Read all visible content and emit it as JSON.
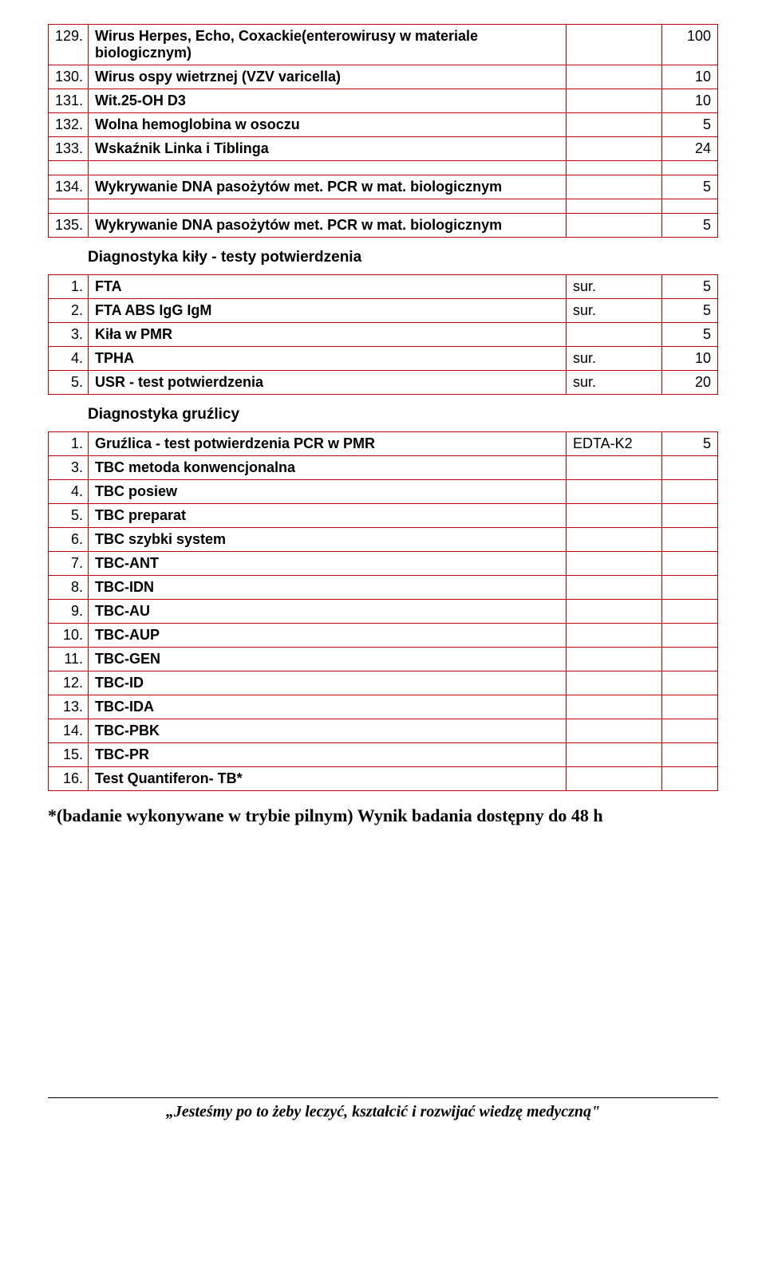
{
  "table1": {
    "rows": [
      {
        "num": "129.",
        "name": "Wirus Herpes, Echo, Coxackie(enterowirusy w materiale biologicznym)",
        "sample": "",
        "days": "100"
      },
      {
        "num": "130.",
        "name": "Wirus ospy wietrznej  (VZV varicella)",
        "sample": "",
        "days": "10"
      },
      {
        "num": "131.",
        "name": "Wit.25-OH D3",
        "sample": "",
        "days": "10"
      },
      {
        "num": "132.",
        "name": "Wolna hemoglobina w osoczu",
        "sample": "",
        "days": "5"
      },
      {
        "num": "133.",
        "name": "Wskaźnik Linka i Tiblinga",
        "sample": "",
        "days": "24"
      },
      {
        "num": "134.",
        "name": "Wykrywanie DNA pasożytów met. PCR w mat. biologicznym",
        "sample": "",
        "days": "5",
        "gap": true
      },
      {
        "num": "135.",
        "name": "Wykrywanie DNA pasożytów met. PCR w mat. biologicznym",
        "sample": "",
        "days": "5",
        "gap": true
      }
    ]
  },
  "section2": {
    "title": "Diagnostyka kiły - testy potwierdzenia",
    "rows": [
      {
        "num": "1.",
        "name": "FTA",
        "sample": "sur.",
        "days": "5"
      },
      {
        "num": "2.",
        "name": "FTA ABS IgG IgM",
        "sample": "sur.",
        "days": "5"
      },
      {
        "num": "3.",
        "name": "Kiła w PMR",
        "sample": "",
        "days": "5"
      },
      {
        "num": "4.",
        "name": "TPHA",
        "sample": "sur.",
        "days": "10"
      },
      {
        "num": "5.",
        "name": "USR - test potwierdzenia",
        "sample": "sur.",
        "days": "20"
      }
    ]
  },
  "section3": {
    "title": "Diagnostyka gruźlicy",
    "rows": [
      {
        "num": "1.",
        "name": "Gruźlica - test potwierdzenia PCR w PMR",
        "sample": "EDTA-K2",
        "days": "5"
      },
      {
        "num": "3.",
        "name": "TBC metoda konwencjonalna",
        "sample": "",
        "days": ""
      },
      {
        "num": "4.",
        "name": "TBC posiew",
        "sample": "",
        "days": ""
      },
      {
        "num": "5.",
        "name": "TBC preparat",
        "sample": "",
        "days": ""
      },
      {
        "num": "6.",
        "name": "TBC szybki system",
        "sample": "",
        "days": ""
      },
      {
        "num": "7.",
        "name": "TBC-ANT",
        "sample": "",
        "days": ""
      },
      {
        "num": "8.",
        "name": "TBC-IDN",
        "sample": "",
        "days": ""
      },
      {
        "num": "9.",
        "name": "TBC-AU",
        "sample": "",
        "days": ""
      },
      {
        "num": "10.",
        "name": "TBC-AUP",
        "sample": "",
        "days": ""
      },
      {
        "num": "11.",
        "name": "TBC-GEN",
        "sample": "",
        "days": ""
      },
      {
        "num": "12.",
        "name": "TBC-ID",
        "sample": "",
        "days": ""
      },
      {
        "num": "13.",
        "name": "TBC-IDA",
        "sample": "",
        "days": ""
      },
      {
        "num": "14.",
        "name": "TBC-PBK",
        "sample": "",
        "days": ""
      },
      {
        "num": "15.",
        "name": "TBC-PR",
        "sample": "",
        "days": ""
      },
      {
        "num": "16.",
        "name": "Test Quantiferon- TB*",
        "sample": "",
        "days": ""
      }
    ]
  },
  "footnote": "*(badanie wykonywane w trybie pilnym) Wynik badania dostępny do 48 h",
  "footer": "„Jesteśmy po to żeby leczyć, kształcić i rozwijać wiedzę medyczną\""
}
